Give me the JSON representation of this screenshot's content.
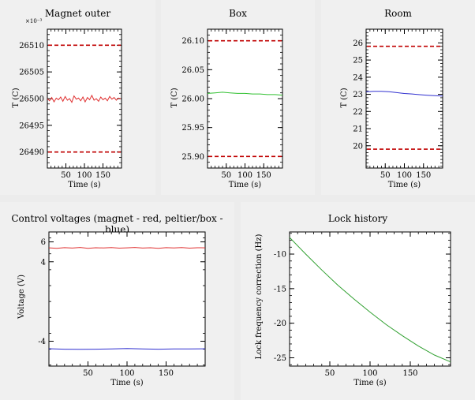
{
  "chart_data": [
    {
      "id": "magnet",
      "type": "line",
      "title": "Magnet outer",
      "xlabel": "Time (s)",
      "ylabel": "T (C)",
      "exponent_label": "×10⁻³",
      "xlim": [
        0,
        200
      ],
      "ylim": [
        26487,
        26513
      ],
      "xticks": [
        50,
        100,
        150
      ],
      "xtick_labels": [
        "50",
        "100",
        "150"
      ],
      "yticks": [
        26490,
        26495,
        26500,
        26505,
        26510
      ],
      "ytick_labels": [
        "26490",
        "26495",
        "26500",
        "26505",
        "26510"
      ],
      "limits": [
        {
          "value": 26510,
          "color": "#c00000"
        },
        {
          "value": 26490,
          "color": "#c00000"
        }
      ],
      "series": [
        {
          "color": "#e03030",
          "x": [
            0,
            6,
            12,
            18,
            24,
            30,
            36,
            42,
            48,
            54,
            60,
            66,
            72,
            78,
            84,
            90,
            96,
            102,
            108,
            114,
            120,
            126,
            132,
            138,
            144,
            150,
            156,
            162,
            168,
            174,
            180,
            186,
            192,
            198
          ],
          "y": [
            26500.0,
            26499.6,
            26500.2,
            26499.4,
            26500.1,
            26499.8,
            26500.3,
            26499.5,
            26500.4,
            26499.7,
            26500.0,
            26499.3,
            26500.5,
            26499.9,
            26500.1,
            26499.6,
            26500.3,
            26499.4,
            26500.2,
            26499.8,
            26500.6,
            26499.7,
            26500.0,
            26499.5,
            26500.3,
            26499.8,
            26500.1,
            26499.6,
            26500.4,
            26499.9,
            26500.2,
            26499.7,
            26500.1,
            26500.0
          ]
        }
      ]
    },
    {
      "id": "box",
      "type": "line",
      "title": "Box",
      "xlabel": "Time (s)",
      "ylabel": "T (C)",
      "xlim": [
        0,
        200
      ],
      "ylim": [
        25.88,
        26.12
      ],
      "xticks": [
        50,
        100,
        150
      ],
      "xtick_labels": [
        "50",
        "100",
        "150"
      ],
      "yticks": [
        25.9,
        25.95,
        26.0,
        26.05,
        26.1
      ],
      "ytick_labels": [
        "25.90",
        "25.95",
        "26.00",
        "26.05",
        "26.10"
      ],
      "limits": [
        {
          "value": 26.1,
          "color": "#c00000"
        },
        {
          "value": 25.9,
          "color": "#c00000"
        }
      ],
      "series": [
        {
          "color": "#30c030",
          "x": [
            0,
            20,
            40,
            60,
            80,
            100,
            120,
            140,
            160,
            180,
            200
          ],
          "y": [
            26.009,
            26.01,
            26.011,
            26.01,
            26.009,
            26.009,
            26.008,
            26.008,
            26.007,
            26.007,
            26.006
          ]
        }
      ]
    },
    {
      "id": "room",
      "type": "line",
      "title": "Room",
      "xlabel": "Time (s)",
      "ylabel": "T (C)",
      "xlim": [
        0,
        200
      ],
      "ylim": [
        18.7,
        26.8
      ],
      "xticks": [
        50,
        100,
        150
      ],
      "xtick_labels": [
        "50",
        "100",
        "150"
      ],
      "yticks": [
        20,
        21,
        22,
        23,
        24,
        25,
        26
      ],
      "ytick_labels": [
        "20",
        "21",
        "22",
        "23",
        "24",
        "25",
        "26"
      ],
      "limits": [
        {
          "value": 25.8,
          "color": "#c00000"
        },
        {
          "value": 19.8,
          "color": "#c00000"
        }
      ],
      "series": [
        {
          "color": "#3030d0",
          "x": [
            0,
            20,
            40,
            60,
            80,
            100,
            120,
            140,
            160,
            180,
            200
          ],
          "y": [
            23.15,
            23.18,
            23.18,
            23.15,
            23.1,
            23.05,
            23.02,
            22.98,
            22.95,
            22.92,
            22.9
          ]
        }
      ]
    },
    {
      "id": "control",
      "type": "line",
      "title": "Control voltages (magnet - red, peltier/box - blue)",
      "xlabel": "Time (s)",
      "ylabel": "Voltage (V)",
      "xlim": [
        0,
        200
      ],
      "ylim": [
        -6.5,
        7.0
      ],
      "xticks": [
        50,
        100,
        150
      ],
      "xtick_labels": [
        "50",
        "100",
        "150"
      ],
      "yticks": [
        -4,
        4,
        6
      ],
      "ytick_labels": [
        "-4",
        "4",
        "6"
      ],
      "limits": [],
      "series": [
        {
          "color": "#e03030",
          "x": [
            0,
            10,
            20,
            30,
            40,
            50,
            60,
            70,
            80,
            90,
            100,
            110,
            120,
            130,
            140,
            150,
            160,
            170,
            180,
            190,
            200
          ],
          "y": [
            5.4,
            5.35,
            5.42,
            5.38,
            5.44,
            5.36,
            5.41,
            5.39,
            5.43,
            5.37,
            5.4,
            5.44,
            5.38,
            5.41,
            5.36,
            5.42,
            5.39,
            5.43,
            5.37,
            5.41,
            5.4
          ]
        },
        {
          "color": "#3030d0",
          "x": [
            0,
            20,
            40,
            60,
            80,
            100,
            120,
            140,
            160,
            180,
            200
          ],
          "y": [
            -4.75,
            -4.8,
            -4.82,
            -4.8,
            -4.78,
            -4.74,
            -4.78,
            -4.8,
            -4.78,
            -4.77,
            -4.76
          ]
        }
      ]
    },
    {
      "id": "lock",
      "type": "line",
      "title": "Lock history",
      "xlabel": "Time (s)",
      "ylabel": "Lock frequency correction (Hz)",
      "xlim": [
        0,
        200
      ],
      "ylim": [
        -26.2,
        -6.8
      ],
      "xticks": [
        50,
        100,
        150
      ],
      "xtick_labels": [
        "50",
        "100",
        "150"
      ],
      "yticks": [
        -25,
        -20,
        -15,
        -10
      ],
      "ytick_labels": [
        "-25",
        "-20",
        "-15",
        "-10"
      ],
      "limits": [],
      "series": [
        {
          "color": "#30a030",
          "x": [
            0,
            20,
            40,
            60,
            80,
            100,
            120,
            140,
            160,
            180,
            200
          ],
          "y": [
            -7.6,
            -10.0,
            -12.3,
            -14.5,
            -16.5,
            -18.4,
            -20.2,
            -21.8,
            -23.3,
            -24.6,
            -25.6
          ]
        }
      ]
    }
  ]
}
